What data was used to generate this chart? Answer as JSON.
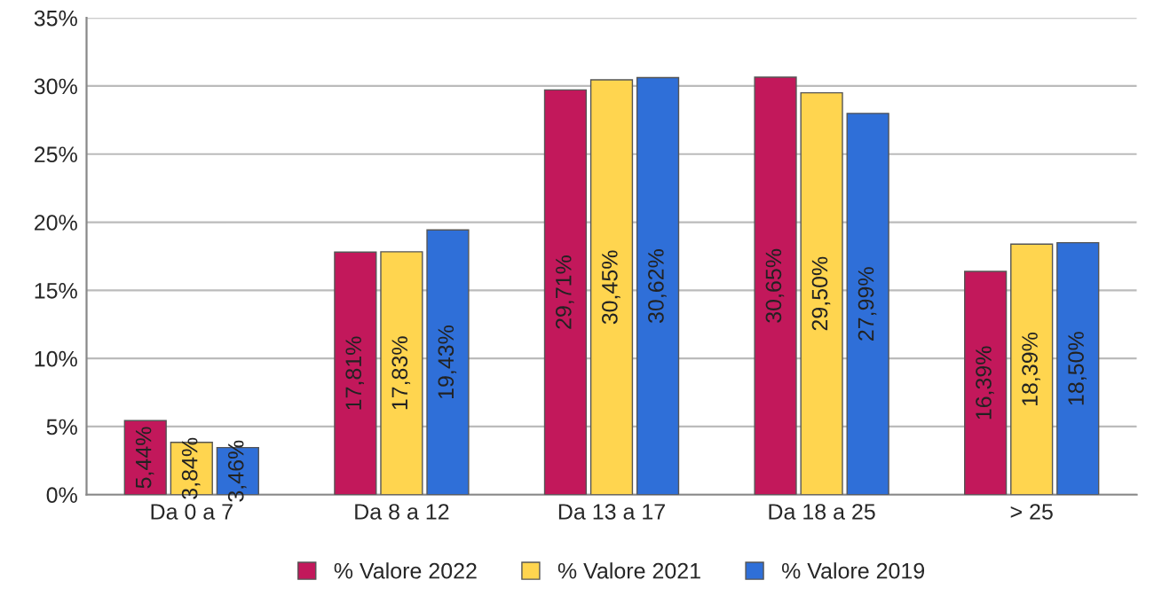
{
  "chart_data": {
    "type": "bar",
    "categories": [
      "Da 0 a 7",
      "Da 8 a 12",
      "Da 13 a 17",
      "Da 18 a 25",
      "> 25"
    ],
    "series": [
      {
        "name": "% Valore 2022",
        "color": "#c2185b",
        "values": [
          5.44,
          17.81,
          29.71,
          30.65,
          16.39
        ],
        "value_labels": [
          "5,44%",
          "17,81%",
          "29,71%",
          "30,65%",
          "16,39%"
        ]
      },
      {
        "name": "% Valore 2021",
        "color": "#ffd54f",
        "values": [
          3.84,
          17.83,
          30.45,
          29.5,
          18.39
        ],
        "value_labels": [
          "3,84%",
          "17,83%",
          "30,45%",
          "29,50%",
          "18,39%"
        ]
      },
      {
        "name": "% Valore 2019",
        "color": "#2f6fd8",
        "values": [
          3.46,
          19.43,
          30.62,
          27.99,
          18.5
        ],
        "value_labels": [
          "3,46%",
          "19,43%",
          "30,62%",
          "27,99%",
          "18,50%"
        ]
      }
    ],
    "ylim": [
      0,
      35
    ],
    "yticks": [
      {
        "value": 0,
        "label": "0%"
      },
      {
        "value": 5,
        "label": "5%"
      },
      {
        "value": 10,
        "label": "10%"
      },
      {
        "value": 15,
        "label": "15%"
      },
      {
        "value": 20,
        "label": "20%"
      },
      {
        "value": 25,
        "label": "25%"
      },
      {
        "value": 30,
        "label": "30%"
      },
      {
        "value": 35,
        "label": "35%"
      }
    ],
    "grid": "y",
    "legend": "bottom"
  }
}
